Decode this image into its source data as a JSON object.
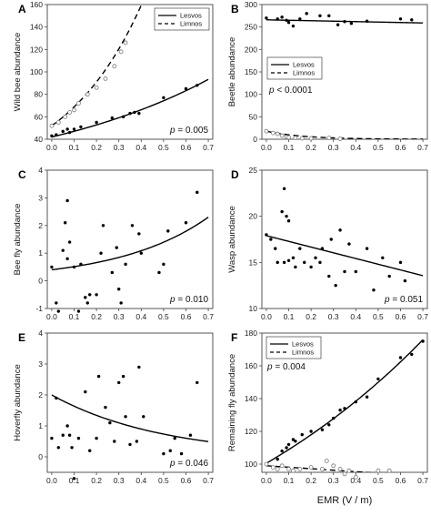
{
  "chart_data": [
    {
      "panel": "A",
      "type": "scatter",
      "ylabel": "Wild bee abundance",
      "ylim": [
        40,
        160
      ],
      "yticks": [
        40,
        60,
        80,
        100,
        120,
        140,
        160
      ],
      "xlim": [
        -0.02,
        0.72
      ],
      "xticks": [
        "0.0",
        "0.1",
        "0.2",
        "0.3",
        "0.4",
        "0.5",
        "0.6",
        "0.7"
      ],
      "legend": {
        "position": "top-right",
        "entries": [
          {
            "label": "Lesvos",
            "style": "solid"
          },
          {
            "label": "Limnos",
            "style": "dashed"
          }
        ]
      },
      "annotation": {
        "prefix": "p",
        "text": " = 0.005",
        "position": "bottom-right"
      },
      "series": [
        {
          "name": "Lesvos",
          "marker": "filled",
          "points": [
            [
              0.0,
              43
            ],
            [
              0.02,
              44
            ],
            [
              0.05,
              47
            ],
            [
              0.07,
              49
            ],
            [
              0.08,
              46
            ],
            [
              0.1,
              49
            ],
            [
              0.13,
              51
            ],
            [
              0.2,
              55
            ],
            [
              0.27,
              59
            ],
            [
              0.32,
              60
            ],
            [
              0.35,
              63
            ],
            [
              0.37,
              64
            ],
            [
              0.39,
              63
            ],
            [
              0.5,
              77
            ],
            [
              0.6,
              85
            ],
            [
              0.65,
              88
            ]
          ],
          "fit": {
            "style": "solid",
            "form": "exp",
            "a": 42,
            "b": 1.14
          }
        },
        {
          "name": "Limnos",
          "marker": "open",
          "points": [
            [
              0.0,
              52
            ],
            [
              0.03,
              55
            ],
            [
              0.06,
              60
            ],
            [
              0.08,
              64
            ],
            [
              0.1,
              66
            ],
            [
              0.12,
              72
            ],
            [
              0.16,
              80
            ],
            [
              0.2,
              86
            ],
            [
              0.24,
              94
            ],
            [
              0.28,
              105
            ],
            [
              0.31,
              118
            ],
            [
              0.33,
              126
            ]
          ],
          "fit": {
            "style": "dashed",
            "form": "exp",
            "a": 52,
            "b": 2.8,
            "xmax": 0.42
          }
        }
      ]
    },
    {
      "panel": "B",
      "type": "scatter",
      "ylabel": "Beetle abundance",
      "ylim": [
        0,
        300
      ],
      "yticks": [
        0,
        50,
        100,
        150,
        200,
        250,
        300
      ],
      "xlim": [
        -0.02,
        0.72
      ],
      "xticks": [
        "0.0",
        "0.1",
        "0.2",
        "0.3",
        "0.4",
        "0.5",
        "0.6",
        "0.7"
      ],
      "legend": {
        "position": "middle-left",
        "entries": [
          {
            "label": "Lesvos",
            "style": "solid"
          },
          {
            "label": "Limnos",
            "style": "dashed"
          }
        ]
      },
      "annotation": {
        "prefix": "p",
        "text": " < 0.0001",
        "position": "middle-left"
      },
      "series": [
        {
          "name": "Lesvos",
          "marker": "filled",
          "points": [
            [
              0.0,
              270
            ],
            [
              0.05,
              268
            ],
            [
              0.07,
              272
            ],
            [
              0.09,
              265
            ],
            [
              0.1,
              260
            ],
            [
              0.12,
              252
            ],
            [
              0.15,
              268
            ],
            [
              0.18,
              280
            ],
            [
              0.24,
              275
            ],
            [
              0.28,
              275
            ],
            [
              0.32,
              255
            ],
            [
              0.35,
              262
            ],
            [
              0.38,
              258
            ],
            [
              0.45,
              263
            ],
            [
              0.6,
              268
            ],
            [
              0.65,
              266
            ]
          ],
          "fit": {
            "style": "solid",
            "form": "lin",
            "a": 266,
            "b": -10
          }
        },
        {
          "name": "Limnos",
          "marker": "open",
          "points": [
            [
              0.0,
              18
            ],
            [
              0.03,
              14
            ],
            [
              0.05,
              12
            ],
            [
              0.07,
              8
            ],
            [
              0.09,
              5
            ],
            [
              0.1,
              4
            ],
            [
              0.13,
              3
            ],
            [
              0.16,
              2
            ],
            [
              0.2,
              2
            ],
            [
              0.28,
              3
            ],
            [
              0.33,
              1
            ]
          ],
          "fit": {
            "style": "dashed",
            "form": "exp",
            "a": 18,
            "b": -6
          }
        }
      ]
    },
    {
      "panel": "C",
      "type": "scatter",
      "ylabel": "Bee fly abundance",
      "ylim": [
        -1,
        4
      ],
      "yticks": [
        -1,
        0,
        1,
        2,
        3,
        4
      ],
      "xlim": [
        -0.02,
        0.72
      ],
      "xticks": [
        "0.0",
        "0.1",
        "0.2",
        "0.3",
        "0.4",
        "0.5",
        "0.6",
        "0.7"
      ],
      "annotation": {
        "prefix": "p",
        "text": " = 0.010",
        "position": "bottom-right"
      },
      "series": [
        {
          "name": "",
          "marker": "filled",
          "points": [
            [
              0.0,
              0.5
            ],
            [
              0.02,
              -0.8
            ],
            [
              0.03,
              -1.1
            ],
            [
              0.05,
              1.1
            ],
            [
              0.06,
              2.1
            ],
            [
              0.07,
              0.8
            ],
            [
              0.07,
              2.9
            ],
            [
              0.08,
              1.4
            ],
            [
              0.1,
              0.5
            ],
            [
              0.12,
              -1.1
            ],
            [
              0.13,
              0.6
            ],
            [
              0.15,
              -0.6
            ],
            [
              0.16,
              -0.8
            ],
            [
              0.17,
              -0.5
            ],
            [
              0.2,
              -0.5
            ],
            [
              0.22,
              1.0
            ],
            [
              0.23,
              2.0
            ],
            [
              0.27,
              0.3
            ],
            [
              0.29,
              1.2
            ],
            [
              0.3,
              -0.3
            ],
            [
              0.31,
              -0.8
            ],
            [
              0.33,
              0.6
            ],
            [
              0.36,
              2.0
            ],
            [
              0.39,
              1.7
            ],
            [
              0.4,
              1.0
            ],
            [
              0.48,
              0.3
            ],
            [
              0.5,
              0.6
            ],
            [
              0.52,
              1.8
            ],
            [
              0.6,
              2.1
            ],
            [
              0.65,
              3.2
            ]
          ],
          "fit": {
            "style": "solid",
            "form": "exp",
            "a": 0.4,
            "b": 2.5
          }
        }
      ]
    },
    {
      "panel": "D",
      "type": "scatter",
      "ylabel": "Wasp abundance",
      "ylim": [
        10,
        25
      ],
      "yticks": [
        10,
        15,
        20,
        25
      ],
      "xlim": [
        -0.02,
        0.72
      ],
      "xticks": [
        "0.0",
        "0.1",
        "0.2",
        "0.3",
        "0.4",
        "0.5",
        "0.6",
        "0.7"
      ],
      "annotation": {
        "prefix": "p",
        "text": " = 0.051",
        "position": "bottom-right"
      },
      "series": [
        {
          "name": "",
          "marker": "filled",
          "points": [
            [
              0.0,
              18
            ],
            [
              0.02,
              17.5
            ],
            [
              0.04,
              16.5
            ],
            [
              0.05,
              15
            ],
            [
              0.07,
              20.5
            ],
            [
              0.08,
              15
            ],
            [
              0.08,
              23
            ],
            [
              0.09,
              20
            ],
            [
              0.1,
              15.2
            ],
            [
              0.1,
              19.5
            ],
            [
              0.12,
              15.5
            ],
            [
              0.13,
              14.5
            ],
            [
              0.15,
              16.5
            ],
            [
              0.17,
              15
            ],
            [
              0.2,
              14.5
            ],
            [
              0.22,
              15.5
            ],
            [
              0.24,
              15
            ],
            [
              0.25,
              16.5
            ],
            [
              0.28,
              13.5
            ],
            [
              0.29,
              17.5
            ],
            [
              0.31,
              12.5
            ],
            [
              0.33,
              18.5
            ],
            [
              0.35,
              14
            ],
            [
              0.37,
              17
            ],
            [
              0.4,
              14
            ],
            [
              0.45,
              16.5
            ],
            [
              0.48,
              12
            ],
            [
              0.52,
              15.5
            ],
            [
              0.55,
              13.5
            ],
            [
              0.6,
              15
            ],
            [
              0.62,
              13
            ]
          ],
          "fit": {
            "style": "solid",
            "form": "lin",
            "a": 17.9,
            "b": -6.2
          }
        }
      ]
    },
    {
      "panel": "E",
      "type": "scatter",
      "ylabel": "Hoverfly abundance",
      "ylim": [
        -0.5,
        4
      ],
      "yticks": [
        0,
        1,
        2,
        3,
        4
      ],
      "xlim": [
        -0.02,
        0.72
      ],
      "xticks": [
        "0.0",
        "0.1",
        "0.2",
        "0.3",
        "0.4",
        "0.5",
        "0.6",
        "0.7"
      ],
      "annotation": {
        "prefix": "p",
        "text": " = 0.046",
        "position": "bottom-right"
      },
      "series": [
        {
          "name": "",
          "marker": "filled",
          "points": [
            [
              0.0,
              0.6
            ],
            [
              0.02,
              1.9
            ],
            [
              0.03,
              0.3
            ],
            [
              0.05,
              0.7
            ],
            [
              0.07,
              1.0
            ],
            [
              0.08,
              0.7
            ],
            [
              0.09,
              0.3
            ],
            [
              0.1,
              -0.7
            ],
            [
              0.12,
              0.6
            ],
            [
              0.15,
              2.1
            ],
            [
              0.17,
              0.2
            ],
            [
              0.2,
              0.6
            ],
            [
              0.21,
              2.6
            ],
            [
              0.24,
              1.6
            ],
            [
              0.26,
              1.1
            ],
            [
              0.28,
              0.5
            ],
            [
              0.3,
              2.4
            ],
            [
              0.32,
              2.6
            ],
            [
              0.33,
              1.3
            ],
            [
              0.35,
              0.4
            ],
            [
              0.38,
              0.5
            ],
            [
              0.39,
              2.9
            ],
            [
              0.41,
              1.3
            ],
            [
              0.5,
              0.1
            ],
            [
              0.53,
              0.2
            ],
            [
              0.55,
              0.6
            ],
            [
              0.58,
              0.1
            ],
            [
              0.62,
              0.7
            ],
            [
              0.65,
              2.4
            ]
          ],
          "fit": {
            "style": "solid",
            "form": "exp",
            "a": 2.0,
            "b": -2.0
          }
        }
      ]
    },
    {
      "panel": "F",
      "type": "scatter",
      "ylabel": "Remaining fly abundance",
      "ylim": [
        95,
        180
      ],
      "yticks": [
        100,
        120,
        140,
        160,
        180
      ],
      "xlim": [
        -0.02,
        0.72
      ],
      "xticks": [
        "0.0",
        "0.1",
        "0.2",
        "0.3",
        "0.4",
        "0.5",
        "0.6",
        "0.7"
      ],
      "xlabel": "EMR (V / m)",
      "legend": {
        "position": "top-left",
        "entries": [
          {
            "label": "Lesvos",
            "style": "solid"
          },
          {
            "label": "Limnos",
            "style": "dashed"
          }
        ]
      },
      "annotation": {
        "prefix": "p",
        "text": " = 0.004",
        "position": "top-left"
      },
      "series": [
        {
          "name": "Lesvos",
          "marker": "filled",
          "points": [
            [
              0.0,
              100
            ],
            [
              0.05,
              103
            ],
            [
              0.07,
              108
            ],
            [
              0.09,
              110
            ],
            [
              0.1,
              112
            ],
            [
              0.12,
              115
            ],
            [
              0.13,
              114
            ],
            [
              0.16,
              118
            ],
            [
              0.2,
              120
            ],
            [
              0.25,
              121
            ],
            [
              0.28,
              124
            ],
            [
              0.3,
              128
            ],
            [
              0.33,
              133
            ],
            [
              0.35,
              134
            ],
            [
              0.4,
              138
            ],
            [
              0.45,
              141
            ],
            [
              0.5,
              152
            ],
            [
              0.6,
              165
            ],
            [
              0.65,
              167
            ],
            [
              0.7,
              175
            ]
          ],
          "fit": {
            "style": "solid",
            "form": "exp",
            "a": 100.5,
            "b": 0.8
          }
        },
        {
          "name": "Limnos",
          "marker": "open",
          "points": [
            [
              0.0,
              100
            ],
            [
              0.03,
              98
            ],
            [
              0.05,
              97
            ],
            [
              0.07,
              99
            ],
            [
              0.1,
              97
            ],
            [
              0.12,
              96
            ],
            [
              0.15,
              97
            ],
            [
              0.2,
              98
            ],
            [
              0.25,
              97
            ],
            [
              0.27,
              102
            ],
            [
              0.3,
              99
            ],
            [
              0.33,
              97
            ],
            [
              0.35,
              94
            ],
            [
              0.37,
              96
            ],
            [
              0.4,
              92
            ],
            [
              0.5,
              96
            ],
            [
              0.55,
              96
            ]
          ],
          "fit": {
            "style": "dashed",
            "form": "lin",
            "a": 99,
            "b": -9
          }
        }
      ]
    }
  ]
}
